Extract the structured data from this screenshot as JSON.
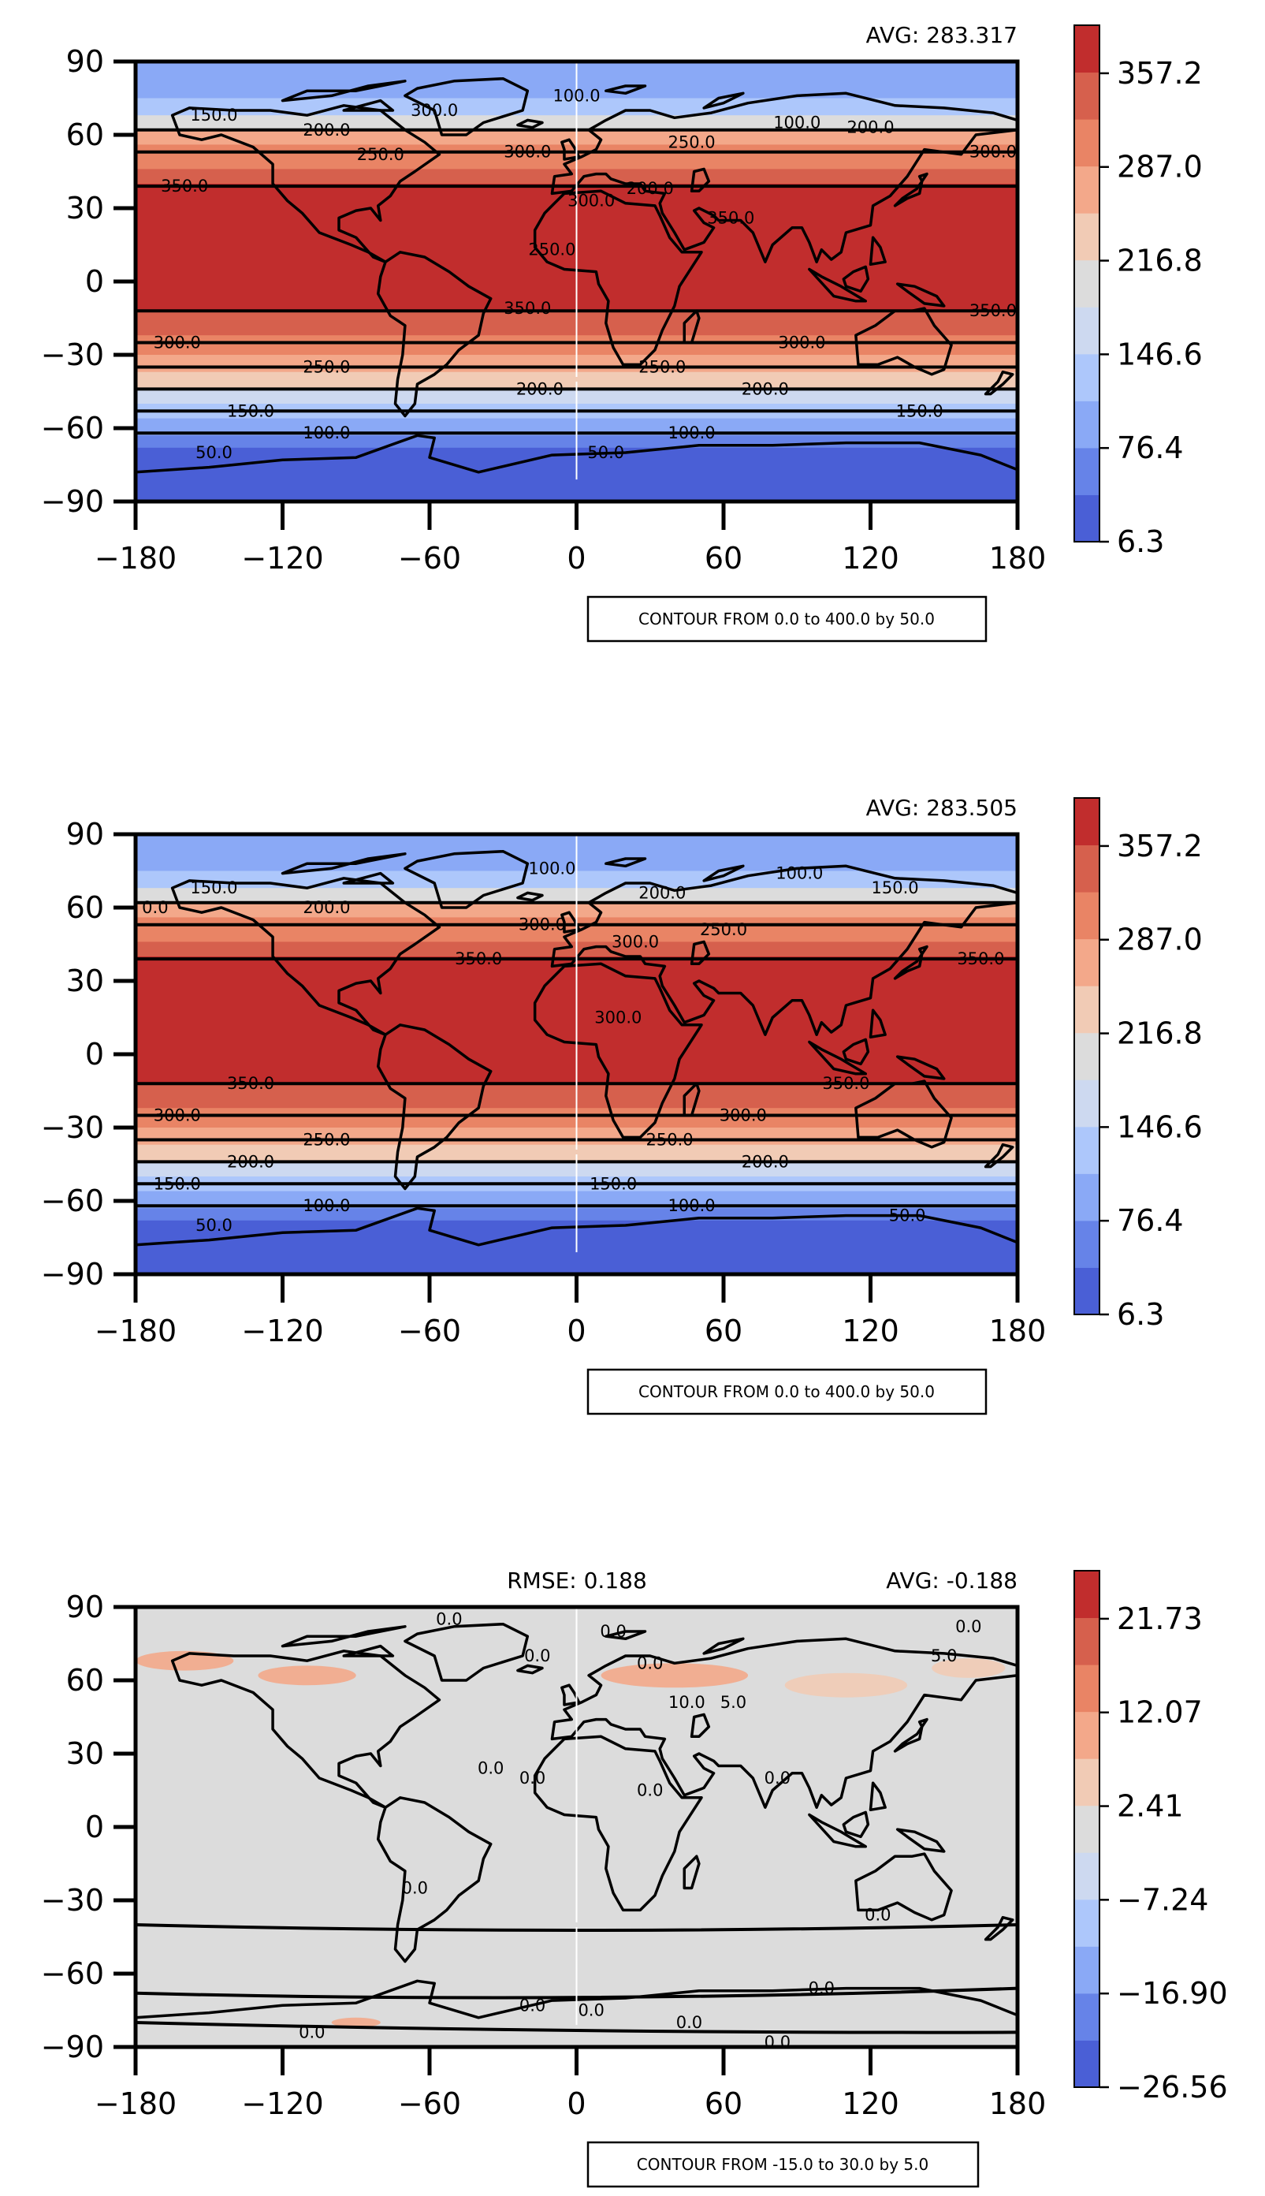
{
  "colors": {
    "sst_levels": [
      "#4a5fd6",
      "#6683e8",
      "#8aa9f6",
      "#adc7fb",
      "#cdd9f0",
      "#dcdcdc",
      "#f1cbb5",
      "#f3a88a",
      "#e98465",
      "#d6604d",
      "#c12d2d"
    ],
    "diff_levels": [
      "#4a5fd6",
      "#6683e8",
      "#8aa9f6",
      "#adc7fb",
      "#cdd9f0",
      "#dcdcdc",
      "#f1cbb5",
      "#f3a88a",
      "#e98465",
      "#d6604d",
      "#c12d2d"
    ],
    "land": "#000000"
  },
  "chart_data": [
    {
      "type": "heatmap",
      "panel": "top",
      "avg_text": "AVG: 283.317",
      "contour_note": "CONTOUR FROM 0.0 to 400.0 by 50.0",
      "x_ticks": [
        "−180",
        "−120",
        "−60",
        "0",
        "60",
        "120",
        "180"
      ],
      "y_ticks": [
        "90",
        "60",
        "30",
        "0",
        "−30",
        "−60",
        "−90"
      ],
      "xlim": [
        -180,
        180
      ],
      "ylim": [
        -90,
        90
      ],
      "colorbar": {
        "ticks": [
          "357.2",
          "287.0",
          "216.8",
          "146.6",
          "76.4",
          "6.3"
        ],
        "range": [
          6.3,
          392.3
        ]
      },
      "zonal_bands": [
        {
          "lat_from": 90,
          "lat_to": 75,
          "level": 2
        },
        {
          "lat_from": 75,
          "lat_to": 68,
          "level": 3
        },
        {
          "lat_from": 68,
          "lat_to": 62,
          "level": 5
        },
        {
          "lat_from": 62,
          "lat_to": 56,
          "level": 7
        },
        {
          "lat_from": 56,
          "lat_to": 46,
          "level": 8
        },
        {
          "lat_from": 46,
          "lat_to": 40,
          "level": 9
        },
        {
          "lat_from": 40,
          "lat_to": -12,
          "level": 10
        },
        {
          "lat_from": -12,
          "lat_to": -22,
          "level": 9
        },
        {
          "lat_from": -22,
          "lat_to": -30,
          "level": 8
        },
        {
          "lat_from": -30,
          "lat_to": -37,
          "level": 7
        },
        {
          "lat_from": -37,
          "lat_to": -44,
          "level": 6
        },
        {
          "lat_from": -44,
          "lat_to": -50,
          "level": 4
        },
        {
          "lat_from": -50,
          "lat_to": -56,
          "level": 3
        },
        {
          "lat_from": -56,
          "lat_to": -63,
          "level": 2
        },
        {
          "lat_from": -63,
          "lat_to": -68,
          "level": 1
        },
        {
          "lat_from": -68,
          "lat_to": -90,
          "level": 0
        }
      ],
      "contour_lines": [
        {
          "lat": 62
        },
        {
          "lat": 53
        },
        {
          "lat": 39
        },
        {
          "lat": -12
        },
        {
          "lat": -25
        },
        {
          "lat": -35
        },
        {
          "lat": -44
        },
        {
          "lat": -53
        },
        {
          "lat": -62
        }
      ],
      "contour_labels": [
        {
          "lon": -148,
          "lat": 68,
          "text": "150.0"
        },
        {
          "lon": -102,
          "lat": 62,
          "text": "200.0"
        },
        {
          "lon": -80,
          "lat": 52,
          "text": "250.0"
        },
        {
          "lon": -58,
          "lat": 70,
          "text": "300.0"
        },
        {
          "lon": -160,
          "lat": 39,
          "text": "350.0"
        },
        {
          "lon": 0,
          "lat": 76,
          "text": "100.0"
        },
        {
          "lon": -20,
          "lat": 53,
          "text": "300.0"
        },
        {
          "lon": 47,
          "lat": 57,
          "text": "250.0"
        },
        {
          "lon": 90,
          "lat": 65,
          "text": "100.0"
        },
        {
          "lon": 120,
          "lat": 63,
          "text": "200.0"
        },
        {
          "lon": 170,
          "lat": 53,
          "text": "300.0"
        },
        {
          "lon": 6,
          "lat": 33,
          "text": "300.0"
        },
        {
          "lon": 30,
          "lat": 38,
          "text": "200.0"
        },
        {
          "lon": 63,
          "lat": 26,
          "text": "350.0"
        },
        {
          "lon": -10,
          "lat": 13,
          "text": "250.0"
        },
        {
          "lon": -20,
          "lat": -11,
          "text": "350.0"
        },
        {
          "lon": 170,
          "lat": -12,
          "text": "350.0"
        },
        {
          "lon": -163,
          "lat": -25,
          "text": "300.0"
        },
        {
          "lon": 92,
          "lat": -25,
          "text": "300.0"
        },
        {
          "lon": -102,
          "lat": -35,
          "text": "250.0"
        },
        {
          "lon": 35,
          "lat": -35,
          "text": "250.0"
        },
        {
          "lon": -15,
          "lat": -44,
          "text": "200.0"
        },
        {
          "lon": 77,
          "lat": -44,
          "text": "200.0"
        },
        {
          "lon": -133,
          "lat": -53,
          "text": "150.0"
        },
        {
          "lon": 140,
          "lat": -53,
          "text": "150.0"
        },
        {
          "lon": -102,
          "lat": -62,
          "text": "100.0"
        },
        {
          "lon": 47,
          "lat": -62,
          "text": "100.0"
        },
        {
          "lon": -148,
          "lat": -70,
          "text": "50.0"
        },
        {
          "lon": 12,
          "lat": -70,
          "text": "50.0"
        }
      ]
    },
    {
      "type": "heatmap",
      "panel": "middle",
      "avg_text": "AVG: 283.505",
      "contour_note": "CONTOUR FROM 0.0 to 400.0 by 50.0",
      "x_ticks": [
        "−180",
        "−120",
        "−60",
        "0",
        "60",
        "120",
        "180"
      ],
      "y_ticks": [
        "90",
        "60",
        "30",
        "0",
        "−30",
        "−60",
        "−90"
      ],
      "xlim": [
        -180,
        180
      ],
      "ylim": [
        -90,
        90
      ],
      "colorbar": {
        "ticks": [
          "357.2",
          "287.0",
          "216.8",
          "146.6",
          "76.4",
          "6.3"
        ],
        "range": [
          6.3,
          392.3
        ]
      },
      "zonal_bands": [
        {
          "lat_from": 90,
          "lat_to": 75,
          "level": 2
        },
        {
          "lat_from": 75,
          "lat_to": 68,
          "level": 3
        },
        {
          "lat_from": 68,
          "lat_to": 62,
          "level": 5
        },
        {
          "lat_from": 62,
          "lat_to": 56,
          "level": 7
        },
        {
          "lat_from": 56,
          "lat_to": 46,
          "level": 8
        },
        {
          "lat_from": 46,
          "lat_to": 40,
          "level": 9
        },
        {
          "lat_from": 40,
          "lat_to": -12,
          "level": 10
        },
        {
          "lat_from": -12,
          "lat_to": -22,
          "level": 9
        },
        {
          "lat_from": -22,
          "lat_to": -30,
          "level": 8
        },
        {
          "lat_from": -30,
          "lat_to": -37,
          "level": 7
        },
        {
          "lat_from": -37,
          "lat_to": -44,
          "level": 6
        },
        {
          "lat_from": -44,
          "lat_to": -50,
          "level": 4
        },
        {
          "lat_from": -50,
          "lat_to": -56,
          "level": 3
        },
        {
          "lat_from": -56,
          "lat_to": -63,
          "level": 2
        },
        {
          "lat_from": -63,
          "lat_to": -68,
          "level": 1
        },
        {
          "lat_from": -68,
          "lat_to": -90,
          "level": 0
        }
      ],
      "contour_lines": [
        {
          "lat": 62
        },
        {
          "lat": 53
        },
        {
          "lat": 39
        },
        {
          "lat": -12
        },
        {
          "lat": -25
        },
        {
          "lat": -35
        },
        {
          "lat": -44
        },
        {
          "lat": -53
        },
        {
          "lat": -62
        }
      ],
      "contour_labels": [
        {
          "lon": -148,
          "lat": 68,
          "text": "150.0"
        },
        {
          "lon": -172,
          "lat": 60,
          "text": "0.0"
        },
        {
          "lon": -102,
          "lat": 60,
          "text": "200.0"
        },
        {
          "lon": -14,
          "lat": 53,
          "text": "300.0"
        },
        {
          "lon": -40,
          "lat": 39,
          "text": "350.0"
        },
        {
          "lon": -10,
          "lat": 76,
          "text": "100.0"
        },
        {
          "lon": 35,
          "lat": 66,
          "text": "200.0"
        },
        {
          "lon": 60,
          "lat": 51,
          "text": "250.0"
        },
        {
          "lon": 91,
          "lat": 74,
          "text": "100.0"
        },
        {
          "lon": 130,
          "lat": 68,
          "text": "150.0"
        },
        {
          "lon": 165,
          "lat": 39,
          "text": "350.0"
        },
        {
          "lon": 24,
          "lat": 46,
          "text": "300.0"
        },
        {
          "lon": 17,
          "lat": 15,
          "text": "300.0"
        },
        {
          "lon": -133,
          "lat": -12,
          "text": "350.0"
        },
        {
          "lon": 110,
          "lat": -12,
          "text": "350.0"
        },
        {
          "lon": -163,
          "lat": -25,
          "text": "300.0"
        },
        {
          "lon": 68,
          "lat": -25,
          "text": "300.0"
        },
        {
          "lon": -102,
          "lat": -35,
          "text": "250.0"
        },
        {
          "lon": 38,
          "lat": -35,
          "text": "250.0"
        },
        {
          "lon": -133,
          "lat": -44,
          "text": "200.0"
        },
        {
          "lon": 77,
          "lat": -44,
          "text": "200.0"
        },
        {
          "lon": -163,
          "lat": -53,
          "text": "150.0"
        },
        {
          "lon": 15,
          "lat": -53,
          "text": "150.0"
        },
        {
          "lon": -102,
          "lat": -62,
          "text": "100.0"
        },
        {
          "lon": 47,
          "lat": -62,
          "text": "100.0"
        },
        {
          "lon": -148,
          "lat": -70,
          "text": "50.0"
        },
        {
          "lon": 135,
          "lat": -66,
          "text": "50.0"
        }
      ]
    },
    {
      "type": "heatmap",
      "panel": "bottom",
      "avg_text": "AVG: -0.188",
      "rmse_text": "RMSE: 0.188",
      "contour_note": "CONTOUR FROM -15.0 to 30.0 by 5.0",
      "x_ticks": [
        "−180",
        "−120",
        "−60",
        "0",
        "60",
        "120",
        "180"
      ],
      "y_ticks": [
        "90",
        "60",
        "30",
        "0",
        "−30",
        "−60",
        "−90"
      ],
      "xlim": [
        -180,
        180
      ],
      "ylim": [
        -90,
        90
      ],
      "colorbar": {
        "ticks": [
          "21.73",
          "12.07",
          "2.41",
          "−7.24",
          "−16.90",
          "−26.56"
        ],
        "range": [
          -26.56,
          26.56
        ]
      },
      "zonal_bands": [
        {
          "lat_from": 90,
          "lat_to": -90,
          "level": 5
        }
      ],
      "warm_patches": [
        {
          "lon": -160,
          "lat": 68,
          "w": 40,
          "h": 8,
          "level": 7
        },
        {
          "lon": -110,
          "lat": 62,
          "w": 40,
          "h": 8,
          "level": 7
        },
        {
          "lon": 40,
          "lat": 62,
          "w": 60,
          "h": 10,
          "level": 7
        },
        {
          "lon": 110,
          "lat": 58,
          "w": 50,
          "h": 10,
          "level": 6
        },
        {
          "lon": 160,
          "lat": 65,
          "w": 30,
          "h": 8,
          "level": 6
        },
        {
          "lon": -90,
          "lat": -80,
          "w": 20,
          "h": 4,
          "level": 7
        }
      ],
      "contour_lines": [],
      "contour_labels": [
        {
          "lon": -52,
          "lat": 85,
          "text": "0.0"
        },
        {
          "lon": 15,
          "lat": 80,
          "text": "0.0"
        },
        {
          "lon": 160,
          "lat": 82,
          "text": "0.0"
        },
        {
          "lon": -16,
          "lat": 70,
          "text": "0.0"
        },
        {
          "lon": 30,
          "lat": 67,
          "text": "0.0"
        },
        {
          "lon": 150,
          "lat": 70,
          "text": "5.0"
        },
        {
          "lon": 45,
          "lat": 51,
          "text": "10.0"
        },
        {
          "lon": 64,
          "lat": 51,
          "text": "5.0"
        },
        {
          "lon": -35,
          "lat": 24,
          "text": "0.0"
        },
        {
          "lon": -18,
          "lat": 20,
          "text": "0.0"
        },
        {
          "lon": 30,
          "lat": 15,
          "text": "0.0"
        },
        {
          "lon": 82,
          "lat": 20,
          "text": "0.0"
        },
        {
          "lon": -66,
          "lat": -25,
          "text": "0.0"
        },
        {
          "lon": 123,
          "lat": -36,
          "text": "0.0"
        },
        {
          "lon": 100,
          "lat": -66,
          "text": "0.0"
        },
        {
          "lon": -18,
          "lat": -73,
          "text": "0.0"
        },
        {
          "lon": 6,
          "lat": -75,
          "text": "0.0"
        },
        {
          "lon": 46,
          "lat": -80,
          "text": "0.0"
        },
        {
          "lon": -108,
          "lat": -84,
          "text": "0.0"
        },
        {
          "lon": 82,
          "lat": -88,
          "text": "0.0"
        }
      ]
    }
  ]
}
